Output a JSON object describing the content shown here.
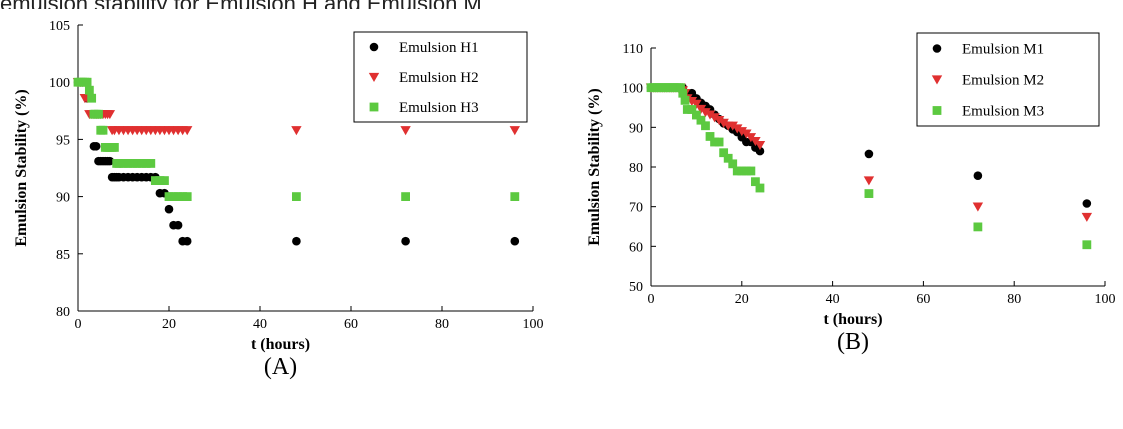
{
  "caption": "emulsion stability for Emulsion H and Emulsion M",
  "colors": {
    "H1": "#000000",
    "H2": "#e03030",
    "H3": "#5cc940",
    "M1": "#000000",
    "M2": "#e03030",
    "M3": "#5cc940"
  },
  "chart_data": [
    {
      "type": "scatter",
      "panel_label": "(A)",
      "xlabel": "t (hours)",
      "ylabel": "Emulsion Stability (%)",
      "xlim": [
        0,
        100
      ],
      "ylim": [
        80,
        105
      ],
      "xticks": [
        0,
        20,
        40,
        60,
        80,
        100
      ],
      "yticks": [
        80,
        85,
        90,
        95,
        100,
        105
      ],
      "grid": false,
      "legend_position": "top-right",
      "series": [
        {
          "name": "Emulsion H1",
          "marker": "circle",
          "color_key": "H1",
          "x": [
            0,
            0.5,
            1,
            1.5,
            2,
            2.5,
            3,
            3.5,
            4,
            4.5,
            5,
            5.5,
            6,
            6.5,
            7,
            7.5,
            8,
            8.5,
            9,
            10,
            11,
            12,
            13,
            14,
            15,
            16,
            17,
            18,
            19,
            20,
            21,
            22,
            23,
            24,
            48,
            72,
            96
          ],
          "y": [
            100,
            100,
            100,
            100,
            98.6,
            98.6,
            97.2,
            94.4,
            94.4,
            93.1,
            93.1,
            93.1,
            93.1,
            93.1,
            93.1,
            91.7,
            91.7,
            91.7,
            91.7,
            91.7,
            91.7,
            91.7,
            91.7,
            91.7,
            91.7,
            91.7,
            91.7,
            90.3,
            90.3,
            88.9,
            87.5,
            87.5,
            86.1,
            86.1,
            86.1,
            86.1,
            86.1
          ]
        },
        {
          "name": "Emulsion H2",
          "marker": "triangle-down",
          "color_key": "H2",
          "x": [
            0,
            0.5,
            1,
            1.5,
            2,
            2.5,
            3,
            3.5,
            4,
            4.5,
            5,
            5.5,
            6,
            6.5,
            7,
            7.5,
            8,
            9,
            10,
            11,
            12,
            13,
            14,
            15,
            16,
            17,
            18,
            19,
            20,
            21,
            22,
            23,
            24,
            48,
            72,
            96
          ],
          "y": [
            100,
            100,
            100,
            98.6,
            98.6,
            97.2,
            97.2,
            97.2,
            97.2,
            97.2,
            97.2,
            97.2,
            97.2,
            97.2,
            97.2,
            95.8,
            95.8,
            95.8,
            95.8,
            95.8,
            95.8,
            95.8,
            95.8,
            95.8,
            95.8,
            95.8,
            95.8,
            95.8,
            95.8,
            95.8,
            95.8,
            95.8,
            95.8,
            95.8,
            95.8,
            95.8
          ]
        },
        {
          "name": "Emulsion H3",
          "marker": "square",
          "color_key": "H3",
          "x": [
            0,
            0.5,
            1,
            1.5,
            2,
            2.5,
            3,
            3.5,
            4,
            4.5,
            5,
            5.5,
            6,
            6.5,
            7,
            7.5,
            8,
            8.5,
            9,
            10,
            11,
            12,
            13,
            14,
            15,
            16,
            17,
            18,
            19,
            20,
            21,
            22,
            23,
            24,
            48,
            72,
            96
          ],
          "y": [
            100,
            100,
            100,
            100,
            100,
            99.3,
            98.6,
            97.2,
            97.2,
            97.2,
            95.8,
            95.8,
            94.3,
            94.3,
            94.3,
            94.3,
            94.3,
            92.9,
            92.9,
            92.9,
            92.9,
            92.9,
            92.9,
            92.9,
            92.9,
            92.9,
            91.4,
            91.4,
            91.4,
            90,
            90,
            90,
            90,
            90,
            90,
            90,
            90
          ]
        }
      ]
    },
    {
      "type": "scatter",
      "panel_label": "(B)",
      "xlabel": "t (hours)",
      "ylabel": "Emulsion Stability (%)",
      "xlim": [
        0,
        100
      ],
      "ylim": [
        50,
        110
      ],
      "xticks": [
        0,
        20,
        40,
        60,
        80,
        100
      ],
      "yticks": [
        50,
        60,
        70,
        80,
        90,
        100,
        110
      ],
      "grid": false,
      "legend_position": "top-right",
      "series": [
        {
          "name": "Emulsion M1",
          "marker": "circle",
          "color_key": "M1",
          "x": [
            0,
            0.5,
            1,
            1.5,
            2,
            2.5,
            3,
            3.5,
            4,
            4.5,
            5,
            5.5,
            6,
            6.5,
            7,
            8,
            9,
            10,
            11,
            12,
            13,
            14,
            15,
            16,
            17,
            18,
            19,
            20,
            21,
            22,
            23,
            24,
            48,
            72,
            96
          ],
          "y": [
            100,
            100,
            100,
            100,
            100,
            100,
            100,
            100,
            100,
            100,
            100,
            100,
            100,
            100,
            100,
            98.6,
            98.6,
            97.3,
            96.2,
            95.4,
            94.5,
            93.2,
            92.1,
            91,
            90.4,
            89.5,
            88.8,
            87.5,
            86.3,
            86.3,
            84.9,
            84,
            83.3,
            77.8,
            70.8
          ]
        },
        {
          "name": "Emulsion M2",
          "marker": "triangle-down",
          "color_key": "M2",
          "x": [
            0,
            0.5,
            1,
            1.5,
            2,
            2.5,
            3,
            3.5,
            4,
            4.5,
            5,
            5.5,
            6,
            6.5,
            7,
            7.5,
            8,
            9,
            10,
            11,
            12,
            13,
            14,
            15,
            16,
            17,
            18,
            19,
            20,
            21,
            22,
            23,
            24,
            48,
            72,
            96
          ],
          "y": [
            100,
            100,
            100,
            100,
            100,
            100,
            100,
            100,
            100,
            100,
            100,
            100,
            100,
            100,
            99.3,
            98.6,
            97.3,
            96.6,
            95.9,
            94.6,
            93.8,
            93.2,
            92.5,
            91.8,
            91.1,
            90.4,
            90.4,
            89.7,
            89,
            88.4,
            87.5,
            86.5,
            85.5,
            76.6,
            70,
            67.4
          ]
        },
        {
          "name": "Emulsion M3",
          "marker": "square",
          "color_key": "M3",
          "x": [
            0,
            0.5,
            1,
            1.5,
            2,
            2.5,
            3,
            3.5,
            4,
            4.5,
            5,
            5.5,
            6,
            6.5,
            7,
            7.5,
            8,
            9,
            10,
            11,
            12,
            13,
            14,
            15,
            16,
            17,
            18,
            19,
            20,
            21,
            22,
            23,
            24,
            48,
            72,
            96
          ],
          "y": [
            100,
            100,
            100,
            100,
            100,
            100,
            100,
            100,
            100,
            100,
            100,
            100,
            100,
            100,
            98.6,
            96.8,
            94.5,
            94.5,
            93.1,
            91.8,
            90.4,
            87.7,
            86.3,
            86.3,
            83.6,
            82.2,
            80.8,
            79,
            79,
            79,
            79,
            76.3,
            74.7,
            73.3,
            64.9,
            60.4
          ]
        }
      ]
    }
  ]
}
